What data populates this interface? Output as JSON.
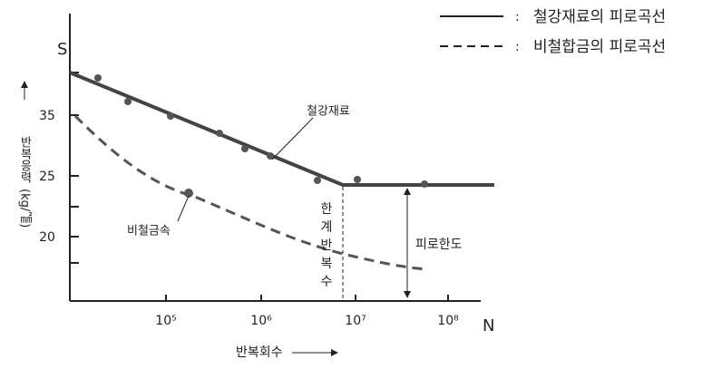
{
  "axes": {
    "y_symbol": "S",
    "x_symbol": "N",
    "y_label": "반복응력",
    "y_unit": "(kg/㎟)",
    "x_label": "반복회수",
    "y_tick_labels": [
      "35",
      "25",
      "20"
    ],
    "x_tick_labels": [
      "10⁵",
      "10⁶",
      "10⁷",
      "10⁸"
    ]
  },
  "legend": [
    {
      "prefix": ":",
      "label": "철강재료의 피로곡선"
    },
    {
      "prefix": ":",
      "label": "비철합금의 피로곡선"
    }
  ],
  "annotations": {
    "steel": "철강재료",
    "nonferrous": "비철금속",
    "limit_cycles": [
      "한",
      "계",
      "반",
      "복",
      "수"
    ],
    "fatigue_limit": "피로한도"
  }
}
